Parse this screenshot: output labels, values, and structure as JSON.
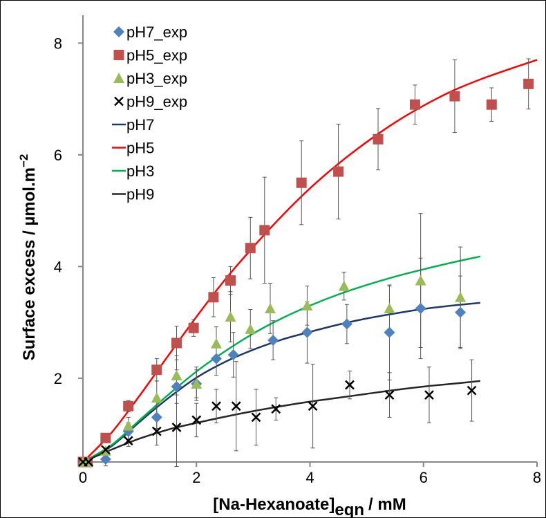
{
  "chart_data": {
    "type": "scatter",
    "xlabel_main": "[Na-Hexanoate]",
    "xlabel_sub": "eqn",
    "xlabel_unit": "/ mM",
    "ylabel": "Surface excess / µmol.m",
    "ylabel_exp": "−2",
    "xlim": [
      0,
      8
    ],
    "ylim": [
      0.5,
      8.5
    ],
    "x_ticks": [
      "0",
      "2",
      "4",
      "6",
      "8"
    ],
    "y_ticks": [
      "2",
      "4",
      "6",
      "8"
    ],
    "x_tick_values": [
      0,
      2,
      4,
      6,
      8
    ],
    "y_tick_values": [
      2,
      4,
      6,
      8
    ],
    "grid": false,
    "legend_position": "top-left",
    "series": [
      {
        "name": "pH7_exp",
        "kind": "points",
        "marker": "diamond",
        "color": "#4F81BD",
        "x": [
          0,
          0.08,
          0.4,
          0.8,
          1.3,
          1.65,
          2.0,
          2.35,
          2.65,
          3.35,
          3.95,
          4.65,
          5.4,
          5.95,
          6.65
        ],
        "y": [
          0.5,
          0.5,
          0.55,
          1.05,
          1.3,
          1.85,
          1.9,
          2.35,
          2.42,
          2.68,
          2.82,
          2.97,
          2.82,
          3.25,
          3.18
        ],
        "err": [
          0,
          0,
          0.12,
          0.15,
          0.2,
          0.3,
          0.3,
          0.3,
          0.4,
          0.35,
          0.55,
          0.35,
          0.85,
          0.9,
          0.65
        ]
      },
      {
        "name": "pH5_exp",
        "kind": "points",
        "marker": "square",
        "color": "#C0504D",
        "x": [
          0,
          0.08,
          0.4,
          0.8,
          1.3,
          1.65,
          1.95,
          2.3,
          2.6,
          2.95,
          3.2,
          3.85,
          4.5,
          5.2,
          5.85,
          6.55,
          7.2,
          7.85
        ],
        "y": [
          0.5,
          0.5,
          0.93,
          1.5,
          2.15,
          2.63,
          2.9,
          3.45,
          3.75,
          4.33,
          4.65,
          5.5,
          5.7,
          6.28,
          6.9,
          7.05,
          6.9,
          7.27
        ],
        "err": [
          0,
          0,
          0,
          0.1,
          0.2,
          0.3,
          0.15,
          0.35,
          0.25,
          0.55,
          0.95,
          0.75,
          0.85,
          0.55,
          0.35,
          0.65,
          0.3,
          0.45
        ]
      },
      {
        "name": "pH3_exp",
        "kind": "points",
        "marker": "triangle",
        "color": "#9BBB59",
        "x": [
          0,
          0.08,
          0.4,
          0.8,
          1.3,
          1.65,
          2.0,
          2.35,
          2.6,
          2.95,
          3.3,
          3.95,
          4.6,
          5.4,
          5.95,
          6.65
        ],
        "y": [
          0.5,
          0.5,
          0.7,
          1.15,
          1.65,
          2.05,
          1.9,
          2.62,
          3.1,
          2.88,
          3.25,
          3.3,
          3.65,
          3.25,
          3.75,
          3.45
        ],
        "err": [
          0,
          0,
          0,
          0.15,
          0.3,
          0.35,
          0.25,
          0.3,
          0.45,
          0.35,
          0.45,
          0.35,
          0.25,
          0.4,
          1.2,
          0.9
        ]
      },
      {
        "name": "pH9_exp",
        "kind": "points",
        "marker": "cross",
        "color": "#000000",
        "x": [
          0,
          0.1,
          0.4,
          0.8,
          1.3,
          1.65,
          2.0,
          2.35,
          2.7,
          3.05,
          3.4,
          4.05,
          4.7,
          5.4,
          6.1,
          6.85
        ],
        "y": [
          0.5,
          0.5,
          0.72,
          0.88,
          1.05,
          1.12,
          1.25,
          1.5,
          1.5,
          1.3,
          1.45,
          1.5,
          1.88,
          1.7,
          1.7,
          1.78
        ],
        "err": [
          0,
          0,
          0,
          0.1,
          0.25,
          0.7,
          0.3,
          0.3,
          0.8,
          0.5,
          0.2,
          0.75,
          0.25,
          0.4,
          0.5,
          0.55
        ]
      },
      {
        "name": "pH7",
        "kind": "line",
        "color": "#1F3864",
        "x": [
          0,
          0.5,
          1,
          1.5,
          2,
          2.5,
          3,
          3.5,
          4,
          4.5,
          5,
          5.5,
          6,
          6.5,
          7
        ],
        "y": [
          0.5,
          0.78,
          1.22,
          1.64,
          2.01,
          2.29,
          2.51,
          2.69,
          2.83,
          2.96,
          3.07,
          3.16,
          3.24,
          3.3,
          3.35
        ]
      },
      {
        "name": "pH5",
        "kind": "line",
        "color": "#FF0000",
        "x": [
          0,
          0.5,
          1,
          1.5,
          2,
          2.5,
          3,
          3.5,
          4,
          4.5,
          5,
          5.5,
          6,
          6.5,
          7,
          7.5,
          8
        ],
        "y": [
          0.5,
          1.02,
          1.69,
          2.4,
          3.1,
          3.76,
          4.35,
          4.9,
          5.4,
          5.84,
          6.23,
          6.58,
          6.88,
          7.14,
          7.35,
          7.53,
          7.7
        ]
      },
      {
        "name": "pH3",
        "kind": "line",
        "color": "#00B050",
        "x": [
          0,
          0.5,
          1,
          1.5,
          2,
          2.5,
          3,
          3.5,
          4,
          4.5,
          5,
          5.5,
          6,
          6.5,
          7
        ],
        "y": [
          0.5,
          0.8,
          1.25,
          1.7,
          2.12,
          2.48,
          2.8,
          3.07,
          3.3,
          3.5,
          3.67,
          3.82,
          3.95,
          4.07,
          4.18
        ]
      },
      {
        "name": "pH9",
        "kind": "line",
        "color": "#262626",
        "x": [
          0,
          0.5,
          1,
          1.5,
          2,
          2.5,
          3,
          3.5,
          4,
          4.5,
          5,
          5.5,
          6,
          6.5,
          7
        ],
        "y": [
          0.5,
          0.72,
          0.92,
          1.08,
          1.2,
          1.31,
          1.41,
          1.5,
          1.58,
          1.65,
          1.72,
          1.79,
          1.85,
          1.9,
          1.95
        ]
      }
    ]
  }
}
